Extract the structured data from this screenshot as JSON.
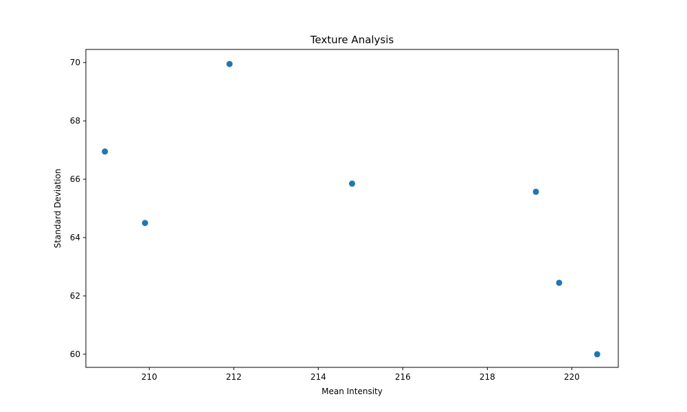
{
  "chart_data": {
    "type": "scatter",
    "title": "Texture Analysis",
    "xlabel": "Mean Intensity",
    "ylabel": "Standard Deviation",
    "xlim": [
      208.5,
      221.1
    ],
    "ylim": [
      59.55,
      70.45
    ],
    "xticks": [
      210,
      212,
      214,
      216,
      218,
      220
    ],
    "yticks": [
      60,
      62,
      64,
      66,
      68,
      70
    ],
    "grid": false,
    "marker_color": "#1f77b4",
    "points": [
      {
        "x": 208.95,
        "y": 66.95
      },
      {
        "x": 209.9,
        "y": 64.5
      },
      {
        "x": 211.9,
        "y": 69.95
      },
      {
        "x": 214.8,
        "y": 65.85
      },
      {
        "x": 219.15,
        "y": 65.57
      },
      {
        "x": 219.7,
        "y": 62.45
      },
      {
        "x": 220.6,
        "y": 60.0
      }
    ]
  }
}
